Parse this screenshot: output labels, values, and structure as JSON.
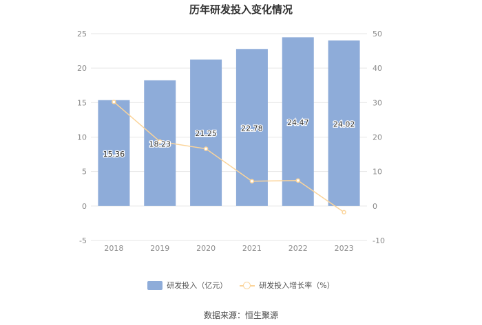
{
  "chart_data": {
    "type": "bar",
    "title": "历年研发投入变化情况",
    "categories": [
      "2018",
      "2019",
      "2020",
      "2021",
      "2022",
      "2023"
    ],
    "series": [
      {
        "name": "研发投入（亿元）",
        "type": "bar",
        "axis": "left",
        "color": "#8eacd9",
        "values": [
          15.36,
          18.23,
          21.25,
          22.78,
          24.47,
          24.02
        ],
        "labels": [
          "15.36",
          "18.23",
          "21.25",
          "22.78",
          "24.47",
          "24.02"
        ]
      },
      {
        "name": "研发投入增长率（%）",
        "type": "line",
        "axis": "right",
        "color": "#fbd49a",
        "values": [
          30.2,
          18.7,
          16.6,
          7.2,
          7.4,
          -1.8
        ]
      }
    ],
    "y_left": {
      "range": [
        -5,
        25
      ],
      "ticks": [
        "-5",
        "0",
        "5",
        "10",
        "15",
        "20",
        "25"
      ]
    },
    "y_right": {
      "range": [
        -10,
        50
      ],
      "ticks": [
        "-10",
        "0",
        "10",
        "20",
        "30",
        "40",
        "50"
      ]
    },
    "grid": true,
    "legend_position": "bottom"
  },
  "footer": {
    "source": "数据来源：恒生聚源"
  }
}
